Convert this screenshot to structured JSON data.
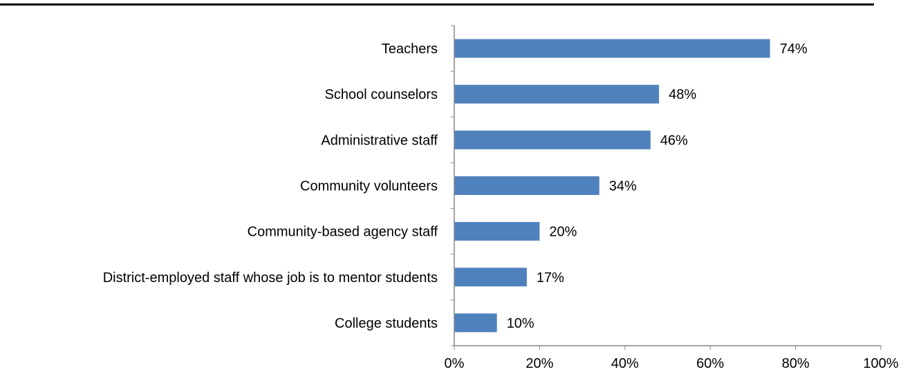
{
  "chart_data": {
    "type": "bar",
    "orientation": "horizontal",
    "title": "",
    "xlabel": "",
    "ylabel": "",
    "categories": [
      "Teachers",
      "School counselors",
      "Administrative staff",
      "Community volunteers",
      "Community-based agency staff",
      "District-employed staff whose job is to mentor students",
      "College students"
    ],
    "values": [
      74,
      48,
      46,
      34,
      20,
      17,
      10
    ],
    "value_labels": [
      "74%",
      "48%",
      "46%",
      "34%",
      "20%",
      "17%",
      "10%"
    ],
    "xlim": [
      0,
      100
    ],
    "x_ticks": [
      0,
      20,
      40,
      60,
      80,
      100
    ],
    "x_tick_labels": [
      "0%",
      "20%",
      "40%",
      "60%",
      "80%",
      "100%"
    ],
    "grid": false,
    "legend": "none",
    "colors": {
      "bar": "#4F81BD",
      "axis": "#868686",
      "rule": "#000000"
    }
  }
}
